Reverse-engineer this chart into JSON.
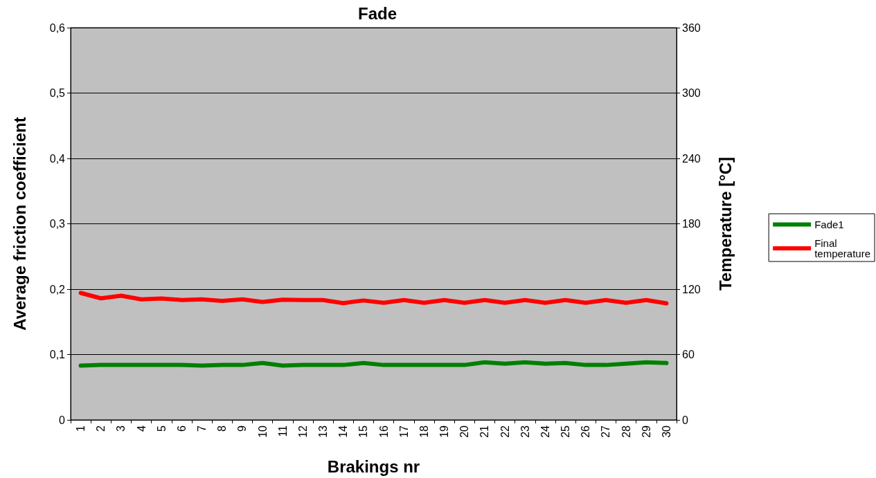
{
  "chart_data": {
    "type": "line",
    "title": "Fade",
    "xlabel": "Brakings nr",
    "ylabel": "Average friction coefficient",
    "y2label": "Temperature [°C]",
    "categories": [
      "1",
      "2",
      "3",
      "4",
      "5",
      "6",
      "7",
      "8",
      "9",
      "10",
      "11",
      "12",
      "13",
      "14",
      "15",
      "16",
      "17",
      "18",
      "19",
      "20",
      "21",
      "22",
      "23",
      "24",
      "25",
      "26",
      "27",
      "28",
      "29",
      "30"
    ],
    "series": [
      {
        "name": "Fade1",
        "color": "#008000",
        "values": [
          0.083,
          0.084,
          0.084,
          0.084,
          0.084,
          0.084,
          0.083,
          0.084,
          0.084,
          0.087,
          0.083,
          0.084,
          0.084,
          0.084,
          0.087,
          0.084,
          0.084,
          0.084,
          0.084,
          0.084,
          0.088,
          0.086,
          0.088,
          0.086,
          0.087,
          0.084,
          0.084,
          0.086,
          0.088,
          0.087
        ]
      },
      {
        "name": "Final temperature",
        "color": "#ff0000",
        "axis": "y2",
        "values": [
          116.5,
          111.6,
          114,
          110.6,
          111.4,
          110,
          110.6,
          109.2,
          110.6,
          108.2,
          110.3,
          110,
          110,
          107.2,
          109.6,
          107.5,
          110,
          107.5,
          110,
          107.5,
          110,
          107.5,
          110,
          107.5,
          110,
          107.5,
          110,
          107.5,
          110,
          107
        ]
      }
    ],
    "ylim": [
      0,
      0.6
    ],
    "yticks": [
      {
        "value": 0,
        "label": "0"
      },
      {
        "value": 0.1,
        "label": "0,1"
      },
      {
        "value": 0.2,
        "label": "0,2"
      },
      {
        "value": 0.3,
        "label": "0,3"
      },
      {
        "value": 0.4,
        "label": "0,4"
      },
      {
        "value": 0.5,
        "label": "0,5"
      },
      {
        "value": 0.6,
        "label": "0,6"
      }
    ],
    "y2lim": [
      0,
      360
    ],
    "y2ticks": [
      0,
      60,
      120,
      180,
      240,
      300,
      360
    ],
    "grid": "y",
    "legend": "right",
    "marker": "none",
    "line_style": "solid"
  }
}
